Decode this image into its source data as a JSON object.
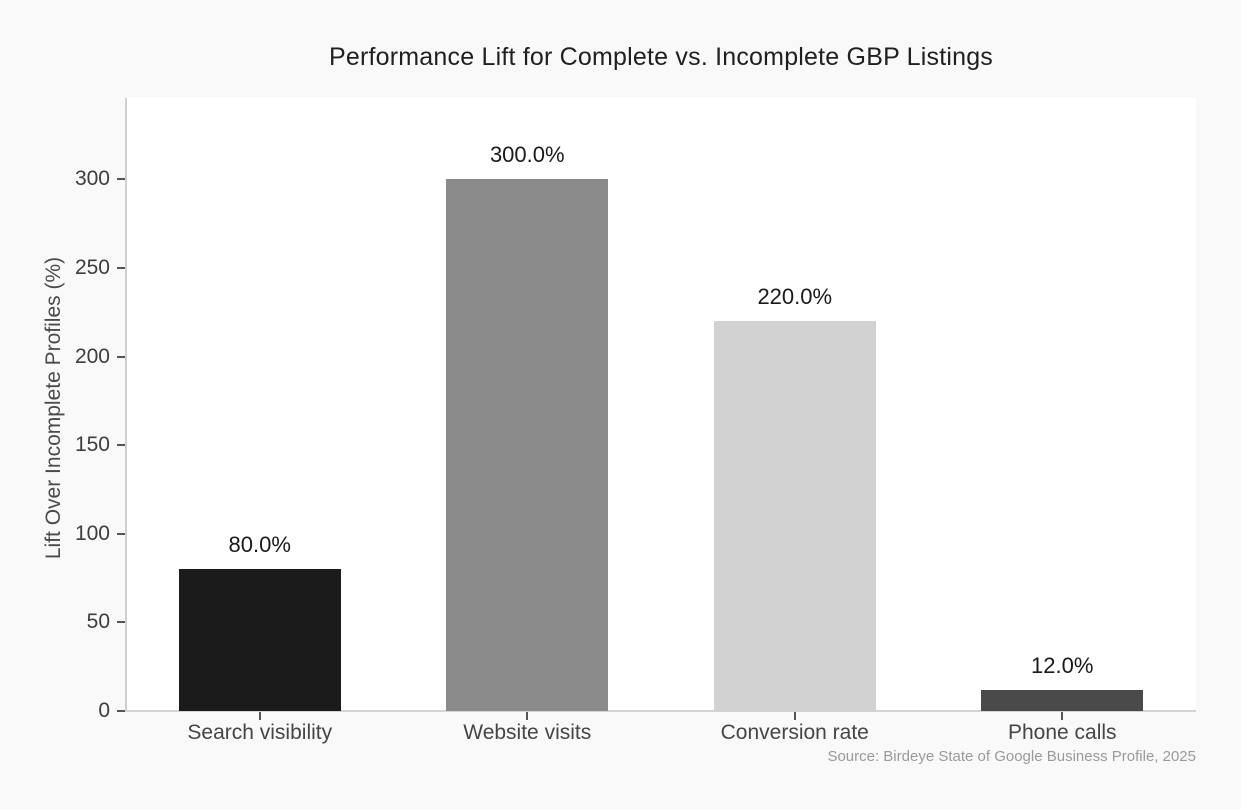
{
  "figure": {
    "background": "#f9f9f9",
    "plot_background": "#ffffff",
    "axis_line_color": "#cfcfcf",
    "tick_mark_color": "#555555",
    "tick_label_color": "#3d3d3d",
    "title_color": "#1f1f1f",
    "value_label_color": "#1a1a1a",
    "source_color": "#9a9a9a"
  },
  "chart_data": {
    "type": "bar",
    "title": "Performance Lift for Complete vs. Incomplete GBP Listings",
    "ylabel": "Lift Over Incomplete Profiles (%)",
    "xlabel": "",
    "categories": [
      "Search visibility",
      "Website visits",
      "Conversion rate",
      "Phone calls"
    ],
    "values": [
      80.0,
      300.0,
      220.0,
      12.0
    ],
    "value_labels": [
      "80.0%",
      "300.0%",
      "220.0%",
      "12.0%"
    ],
    "bar_colors": [
      "#1b1b1b",
      "#8b8b8b",
      "#d2d2d2",
      "#4a4a4a"
    ],
    "yticks": [
      0,
      50,
      100,
      150,
      200,
      250,
      300
    ],
    "ylim": [
      0,
      346
    ],
    "grid": false,
    "legend": false,
    "source": "Source: Birdeye State of Google Business Profile, 2025"
  }
}
